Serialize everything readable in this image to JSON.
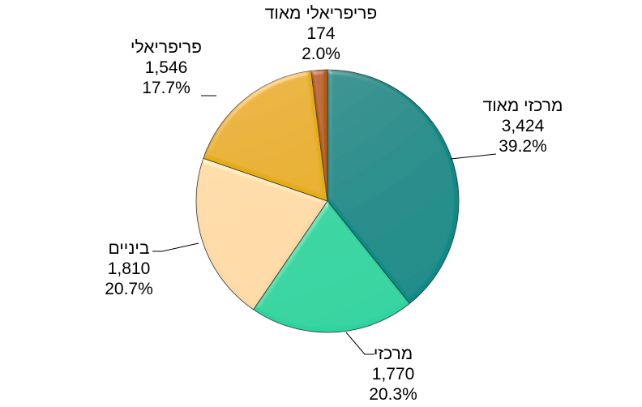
{
  "chart_data": {
    "type": "pie",
    "title": "",
    "start_angle_deg": 0,
    "direction": "clockwise",
    "categories": [
      "מרכזי מאוד",
      "מרכזי",
      "ביניים",
      "פריפריאלי",
      "פריפריאלי מאוד"
    ],
    "values": [
      3424,
      1770,
      1810,
      1546,
      174
    ],
    "percentages": [
      39.2,
      20.3,
      20.7,
      17.7,
      2.0
    ],
    "colors": [
      "#0A8A87",
      "#2DD39F",
      "#FDD9A5",
      "#E5AC14",
      "#B75A0A"
    ],
    "legend": "none",
    "data_labels": "category, value, percentage"
  },
  "labels": [
    {
      "name": "מרכזי מאוד",
      "value": "3,424",
      "pct": "39.2%"
    },
    {
      "name": "מרכזי",
      "value": "1,770",
      "pct": "20.3%"
    },
    {
      "name": "ביניים",
      "value": "1,810",
      "pct": "20.7%"
    },
    {
      "name": "פריפריאלי",
      "value": "1,546",
      "pct": "17.7%"
    },
    {
      "name": "פריפריאלי מאוד",
      "value": "174",
      "pct": "2.0%"
    }
  ]
}
